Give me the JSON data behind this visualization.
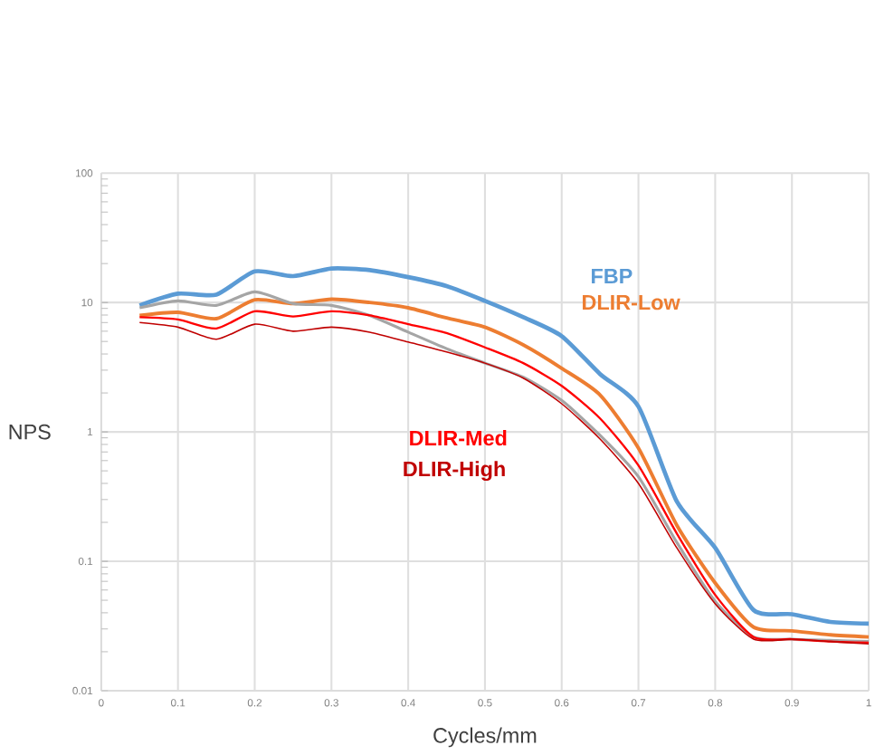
{
  "chart_data": {
    "type": "line",
    "xlabel": "Cycles/mm",
    "ylabel": "NPS",
    "log": "y",
    "grid": true,
    "marker": "none",
    "line_style": "solid",
    "xlim": [
      0,
      1
    ],
    "xticks": [
      0,
      0.1,
      0.2,
      0.3,
      0.4,
      0.5,
      0.6,
      0.7,
      0.8,
      0.9,
      1
    ],
    "ylim": [
      0.01,
      100
    ],
    "yticks": [
      0.01,
      0.1,
      1,
      10,
      100
    ],
    "x": [
      0.05,
      0.1,
      0.15,
      0.2,
      0.25,
      0.3,
      0.35,
      0.4,
      0.45,
      0.5,
      0.55,
      0.6,
      0.65,
      0.7,
      0.75,
      0.8,
      0.85,
      0.9,
      0.95,
      1.0
    ],
    "series": [
      {
        "name": "FBP",
        "color": "#5b9bd5",
        "values": [
          9.5,
          11.7,
          11.5,
          17.4,
          16,
          18.3,
          17.8,
          15.7,
          13.4,
          10.3,
          7.7,
          5.5,
          2.8,
          1.57,
          0.29,
          0.127,
          0.042,
          0.039,
          0.034,
          0.033
        ]
      },
      {
        "name": "DLIR-Low",
        "color": "#ed7d31",
        "values": [
          7.95,
          8.4,
          7.5,
          10.5,
          9.8,
          10.6,
          10,
          9.1,
          7.6,
          6.45,
          4.7,
          3.1,
          1.93,
          0.75,
          0.19,
          0.068,
          0.031,
          0.029,
          0.027,
          0.026
        ]
      },
      {
        "color": "#a5a5a5",
        "values": [
          9.1,
          10.3,
          9.5,
          12.1,
          9.8,
          9.5,
          7.95,
          5.9,
          4.4,
          3.4,
          2.65,
          1.75,
          0.94,
          0.45,
          0.14,
          0.049,
          0.026,
          0.025,
          0.0245,
          0.024
        ]
      },
      {
        "name": "DLIR-Med",
        "color": "#ff0000",
        "values": [
          7.7,
          7.4,
          6.3,
          8.55,
          7.8,
          8.55,
          7.95,
          6.8,
          5.8,
          4.5,
          3.4,
          2.27,
          1.27,
          0.55,
          0.164,
          0.055,
          0.026,
          0.025,
          0.024,
          0.0235
        ]
      },
      {
        "name": "DLIR-High",
        "color": "#c00000",
        "values": [
          7.0,
          6.45,
          5.2,
          6.8,
          6.0,
          6.45,
          5.9,
          4.95,
          4.15,
          3.4,
          2.6,
          1.65,
          0.88,
          0.4,
          0.127,
          0.047,
          0.025,
          0.025,
          0.024,
          0.023
        ]
      }
    ]
  }
}
